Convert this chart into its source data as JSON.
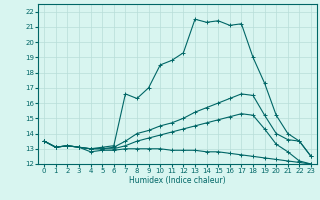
{
  "xlabel": "Humidex (Indice chaleur)",
  "background_color": "#d8f5f0",
  "grid_color": "#b8ddd8",
  "line_color": "#006666",
  "xlim": [
    -0.5,
    23.5
  ],
  "ylim": [
    12,
    22.5
  ],
  "yticks": [
    12,
    13,
    14,
    15,
    16,
    17,
    18,
    19,
    20,
    21,
    22
  ],
  "xticks": [
    0,
    1,
    2,
    3,
    4,
    5,
    6,
    7,
    8,
    9,
    10,
    11,
    12,
    13,
    14,
    15,
    16,
    17,
    18,
    19,
    20,
    21,
    22,
    23
  ],
  "line1_y": [
    13.5,
    13.1,
    13.2,
    13.1,
    13.0,
    13.1,
    13.2,
    16.6,
    16.3,
    17.0,
    18.5,
    18.8,
    19.3,
    21.5,
    21.3,
    21.4,
    21.1,
    21.2,
    19.0,
    17.3,
    15.2,
    14.0,
    13.5,
    12.5
  ],
  "line2_y": [
    13.5,
    13.1,
    13.2,
    13.1,
    13.0,
    13.0,
    13.1,
    13.5,
    14.0,
    14.2,
    14.5,
    14.7,
    15.0,
    15.4,
    15.7,
    16.0,
    16.3,
    16.6,
    16.5,
    15.2,
    14.0,
    13.6,
    13.5,
    12.5
  ],
  "line3_y": [
    13.5,
    13.1,
    13.2,
    13.1,
    13.0,
    13.0,
    13.0,
    13.2,
    13.5,
    13.7,
    13.9,
    14.1,
    14.3,
    14.5,
    14.7,
    14.9,
    15.1,
    15.3,
    15.2,
    14.3,
    13.3,
    12.8,
    12.2,
    12.0
  ],
  "line4_y": [
    13.5,
    13.1,
    13.2,
    13.1,
    12.8,
    12.9,
    12.9,
    13.0,
    13.0,
    13.0,
    13.0,
    12.9,
    12.9,
    12.9,
    12.8,
    12.8,
    12.7,
    12.6,
    12.5,
    12.4,
    12.3,
    12.2,
    12.1,
    12.0
  ]
}
